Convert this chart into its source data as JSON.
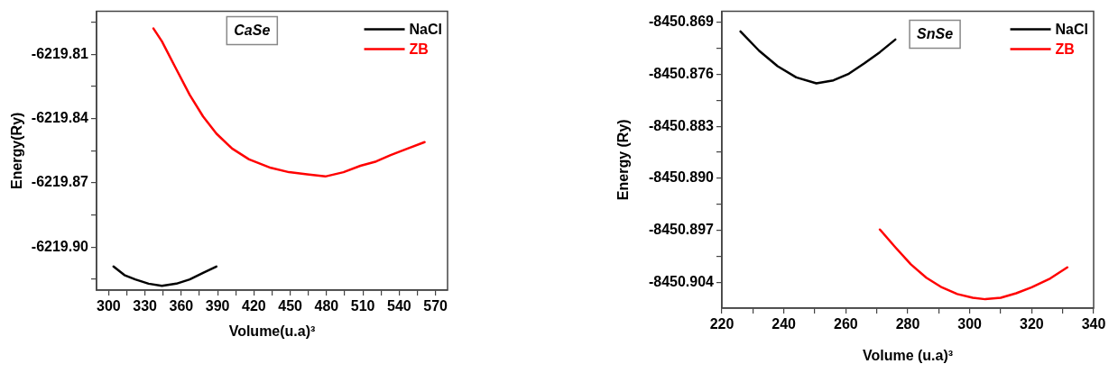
{
  "chart_data": [
    {
      "type": "line",
      "annotations": [
        "CaSe"
      ],
      "xlabel": "Volume(u.a)³",
      "ylabel": "Energy(Ry)",
      "legend": "top right",
      "marker": "none",
      "xlim": [
        290,
        580
      ],
      "xticks": [
        300,
        {
          "value": 315,
          "label": null
        },
        330,
        {
          "value": 345,
          "label": null
        },
        360,
        {
          "value": 375,
          "label": null
        },
        390,
        {
          "value": 405,
          "label": null
        },
        420,
        {
          "value": 435,
          "label": null
        },
        450,
        {
          "value": 465,
          "label": null
        },
        480,
        {
          "value": 495,
          "label": null
        },
        510,
        {
          "value": 525,
          "label": null
        },
        540,
        {
          "value": 555,
          "label": null
        },
        570
      ],
      "ylim": [
        -6219.92,
        -6219.79
      ],
      "yticks": [
        {
          "value": -6219.915,
          "label": null
        },
        {
          "value": -6219.9,
          "label": "-6219.90"
        },
        {
          "value": -6219.885,
          "label": null
        },
        -6219.87,
        {
          "value": -6219.855,
          "label": null
        },
        -6219.84,
        {
          "value": -6219.825,
          "label": null
        },
        -6219.81,
        {
          "value": -6219.795,
          "label": null
        }
      ],
      "series": [
        {
          "name": "NaCl",
          "color": "#000000",
          "x": [
            304,
            313,
            322,
            333,
            344,
            356,
            367,
            378,
            389
          ],
          "values": [
            -6219.909,
            -6219.913,
            -6219.915,
            -6219.917,
            -6219.918,
            -6219.917,
            -6219.915,
            -6219.912,
            -6219.909
          ]
        },
        {
          "name": "ZB",
          "color": "#ff0000",
          "x": [
            337,
            344,
            355,
            367,
            378,
            389,
            402,
            416,
            434,
            449,
            464,
            479,
            494,
            508,
            521,
            533,
            547,
            561
          ],
          "values": [
            -6219.798,
            -6219.804,
            -6219.816,
            -6219.829,
            -6219.839,
            -6219.847,
            -6219.854,
            -6219.859,
            -6219.863,
            -6219.865,
            -6219.866,
            -6219.867,
            -6219.865,
            -6219.862,
            -6219.86,
            -6219.857,
            -6219.854,
            -6219.851
          ]
        }
      ]
    },
    {
      "type": "line",
      "annotations": [
        "SnSe"
      ],
      "xlabel": "Volume (u.a)³",
      "ylabel": "Energy (Ry)",
      "legend": "top right",
      "marker": "none",
      "xlim": [
        220,
        340
      ],
      "xticks": [
        220,
        {
          "value": 230,
          "label": null
        },
        240,
        {
          "value": 250,
          "label": null
        },
        260,
        {
          "value": 270,
          "label": null
        },
        280,
        {
          "value": 290,
          "label": null
        },
        300,
        {
          "value": 310,
          "label": null
        },
        320,
        {
          "value": 330,
          "label": null
        },
        340
      ],
      "ylim": [
        -8450.9075,
        -8450.8675
      ],
      "yticks": [
        -8450.904,
        {
          "value": -8450.9005,
          "label": null
        },
        -8450.897,
        {
          "value": -8450.8935,
          "label": null
        },
        {
          "value": -8450.89,
          "label": "-8450.890"
        },
        {
          "value": -8450.8865,
          "label": null
        },
        -8450.883,
        {
          "value": -8450.8795,
          "label": null
        },
        -8450.876,
        {
          "value": -8450.8725,
          "label": null
        },
        -8450.869
      ],
      "series": [
        {
          "name": "NaCl",
          "color": "#000000",
          "x": [
            226,
            232,
            238,
            244,
            250.5,
            256,
            261,
            266,
            271,
            276
          ],
          "values": [
            -8450.8702,
            -8450.8728,
            -8450.8749,
            -8450.8764,
            -8450.8772,
            -8450.8768,
            -8450.8759,
            -8450.8745,
            -8450.873,
            -8450.8713
          ]
        },
        {
          "name": "ZB",
          "color": "#ff0000",
          "x": [
            271,
            276,
            281,
            286,
            291,
            296,
            301,
            305,
            310,
            315,
            320,
            326,
            331.5
          ],
          "values": [
            -8450.8969,
            -8450.8993,
            -8450.9016,
            -8450.9034,
            -8450.9047,
            -8450.9056,
            -8450.9061,
            -8450.9063,
            -8450.9061,
            -8450.9055,
            -8450.9047,
            -8450.9035,
            -8450.902
          ]
        }
      ]
    }
  ]
}
